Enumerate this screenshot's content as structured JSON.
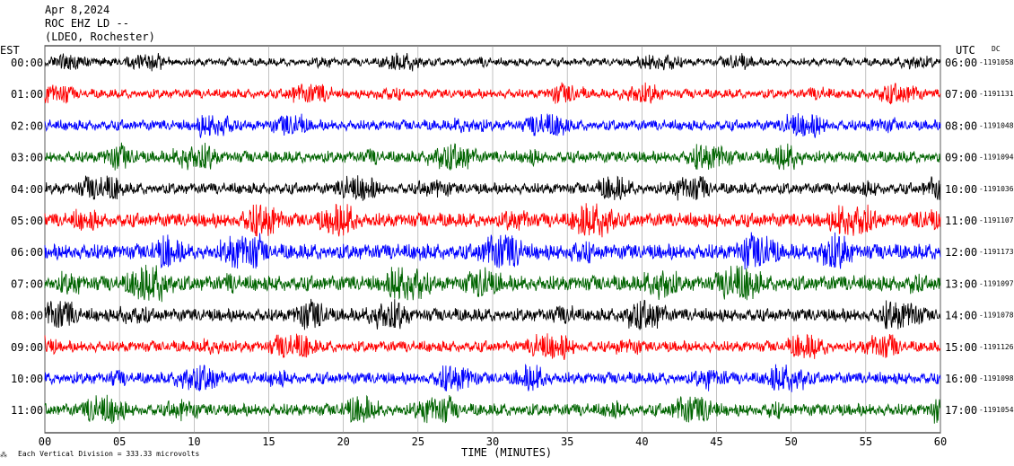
{
  "header": {
    "date": "Apr 8,2024",
    "station": "ROC EHZ LD --",
    "network": "(LDEO, Rochester)"
  },
  "labels": {
    "left_axis": "EST",
    "right_axis": "UTC",
    "dc": "DC",
    "xlabel": "TIME (MINUTES)",
    "scale_note": "Each Vertical Division =  333.33 microvolts"
  },
  "chart_data": {
    "type": "line",
    "title": "",
    "xlabel": "TIME (MINUTES)",
    "ylabel": "",
    "xlim": [
      0,
      60
    ],
    "x_ticks": [
      "00",
      "05",
      "10",
      "15",
      "20",
      "25",
      "30",
      "35",
      "40",
      "45",
      "50",
      "55",
      "60"
    ],
    "grid": "vertical lines every 5 minutes",
    "colors": [
      "#000000",
      "#ff0000",
      "#0000ff",
      "#006400"
    ],
    "rows": [
      {
        "est": "00:00",
        "utc": "06:00",
        "dc": "1191058",
        "amplitude": 0.5
      },
      {
        "est": "01:00",
        "utc": "07:00",
        "dc": "1191131",
        "amplitude": 0.6
      },
      {
        "est": "02:00",
        "utc": "08:00",
        "dc": "1191048",
        "amplitude": 0.7
      },
      {
        "est": "03:00",
        "utc": "09:00",
        "dc": "1191094",
        "amplitude": 0.8
      },
      {
        "est": "04:00",
        "utc": "10:00",
        "dc": "1191036",
        "amplitude": 0.75
      },
      {
        "est": "05:00",
        "utc": "11:00",
        "dc": "1191107",
        "amplitude": 1.0
      },
      {
        "est": "06:00",
        "utc": "12:00",
        "dc": "1191173",
        "amplitude": 1.1
      },
      {
        "est": "07:00",
        "utc": "13:00",
        "dc": "1191097",
        "amplitude": 1.1
      },
      {
        "est": "08:00",
        "utc": "14:00",
        "dc": "1191078",
        "amplitude": 0.9
      },
      {
        "est": "09:00",
        "utc": "15:00",
        "dc": "1191126",
        "amplitude": 0.75
      },
      {
        "est": "10:00",
        "utc": "16:00",
        "dc": "1191098",
        "amplitude": 0.8
      },
      {
        "est": "11:00",
        "utc": "17:00",
        "dc": "1191054",
        "amplitude": 0.85
      }
    ]
  }
}
